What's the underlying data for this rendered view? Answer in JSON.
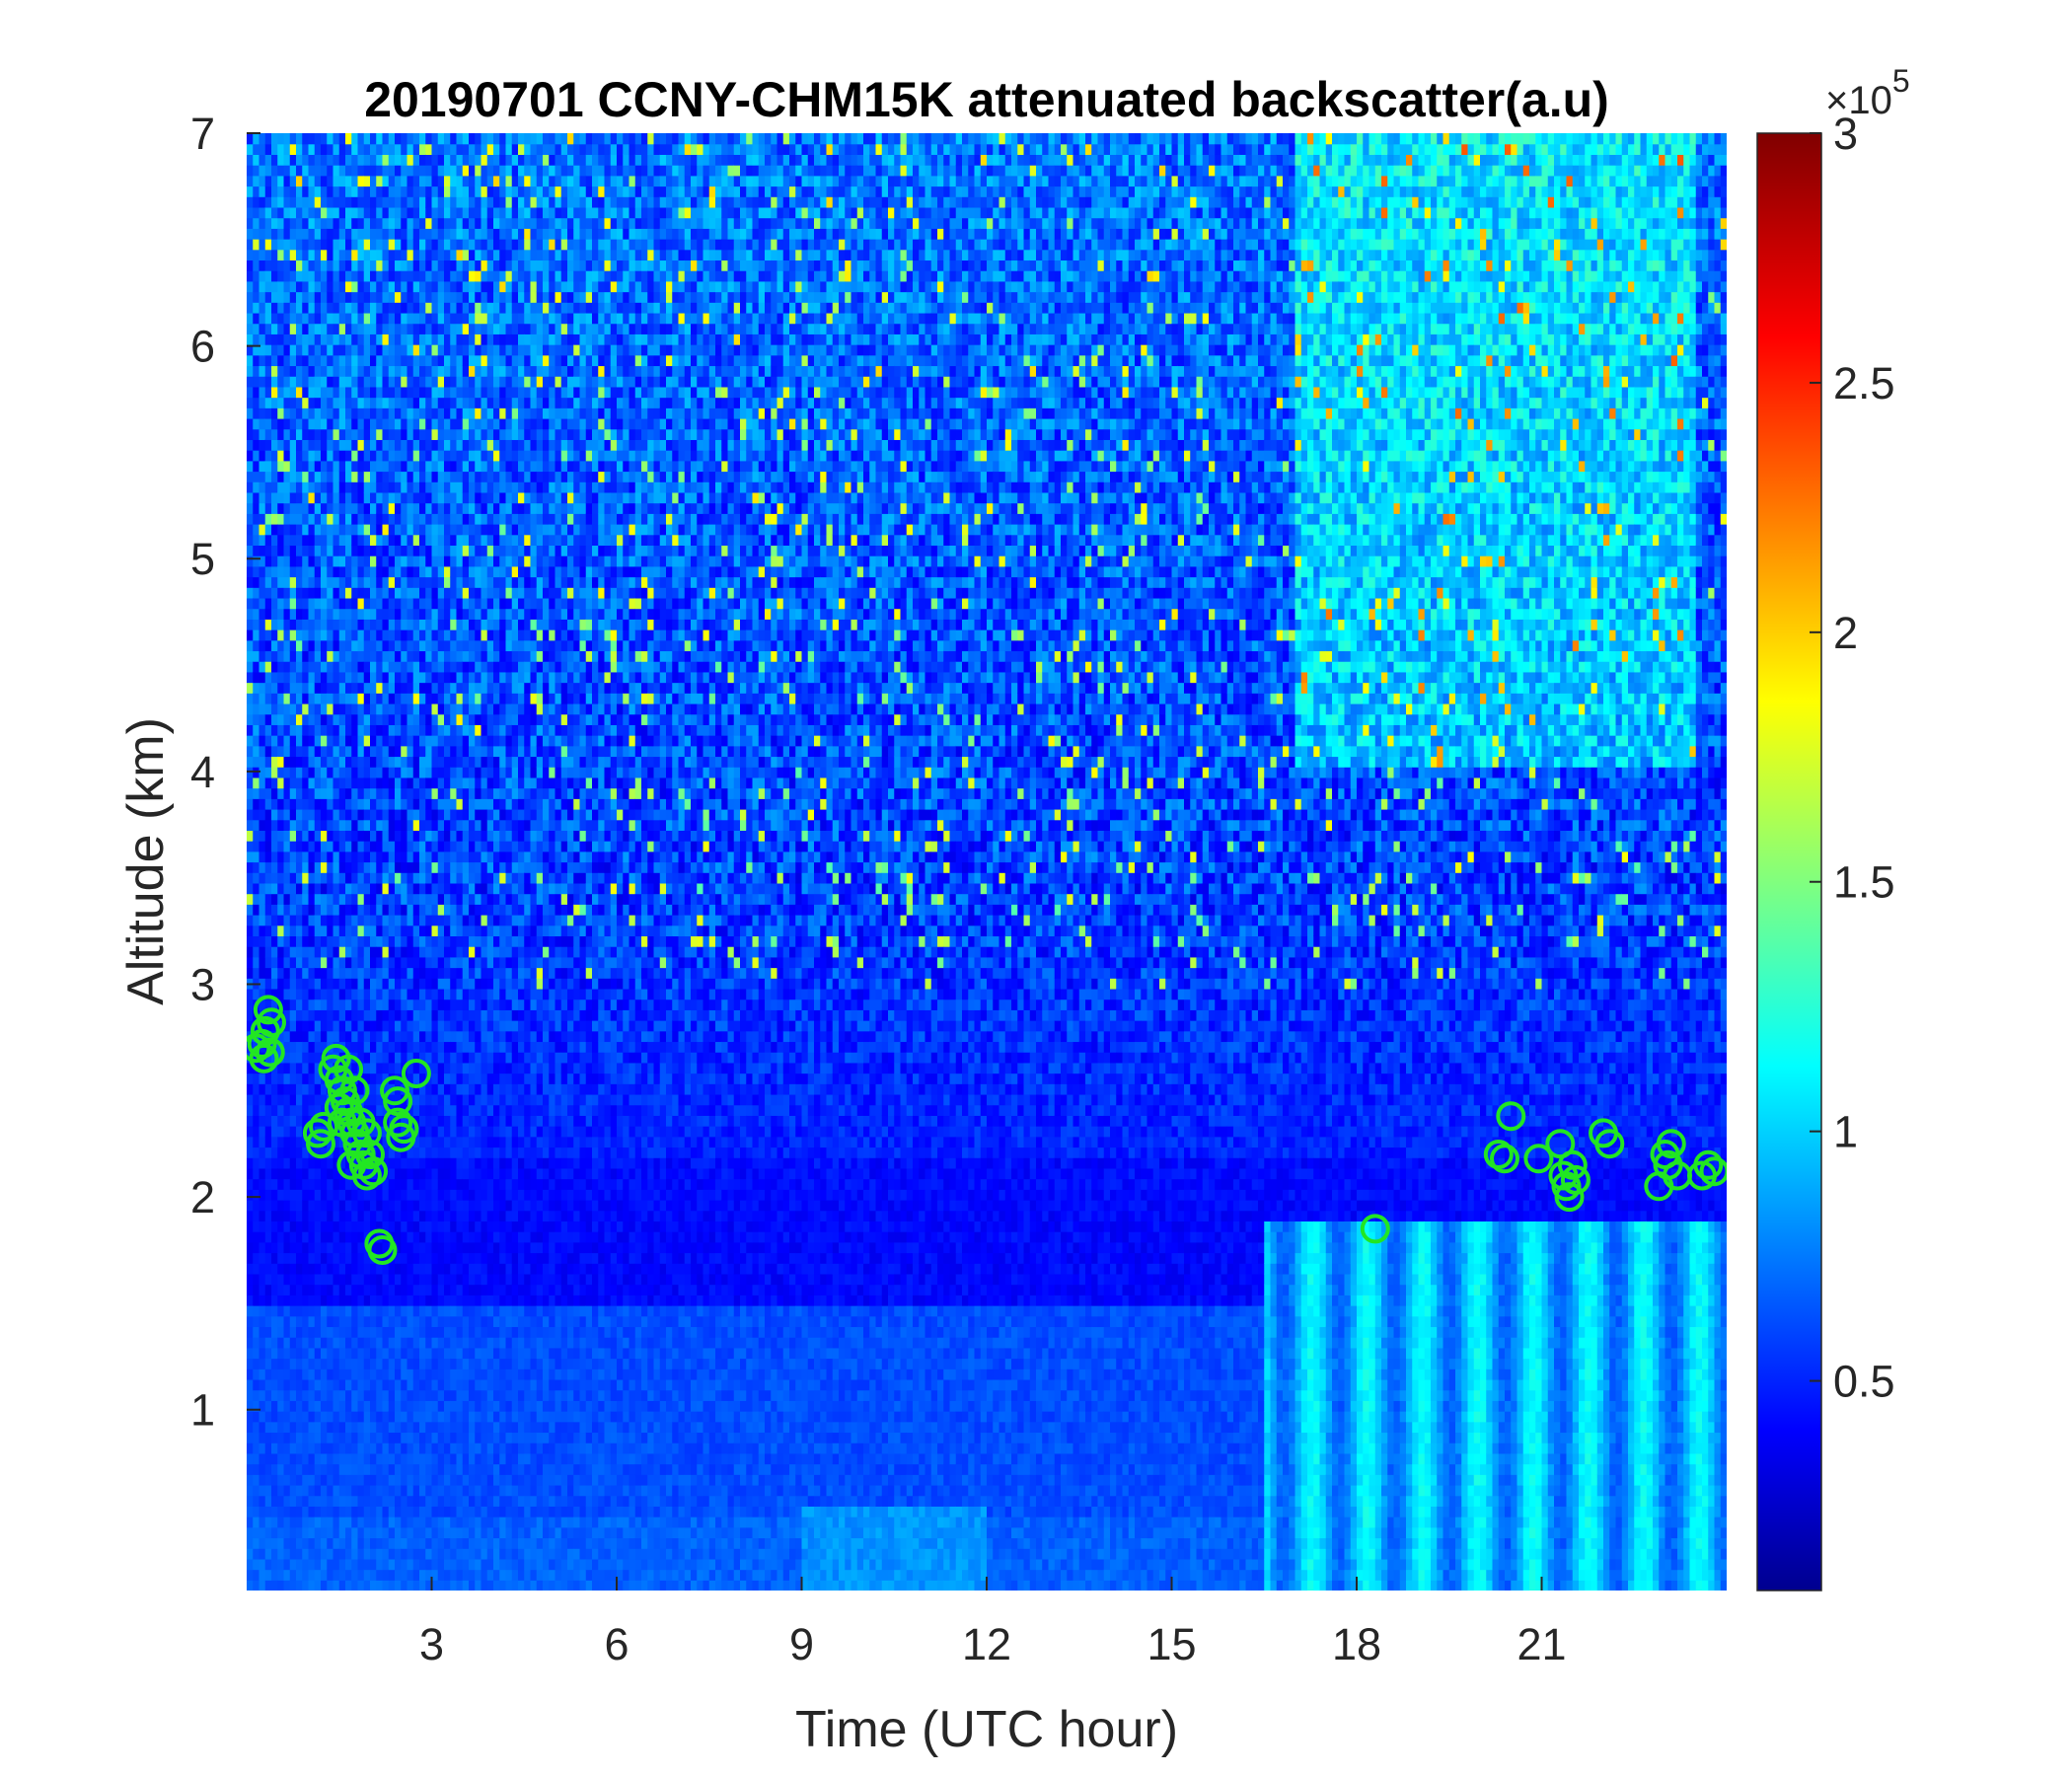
{
  "chart_data": {
    "type": "heatmap",
    "title": "20190701 CCNY-CHM15K attenuated backscatter(a.u)",
    "xlabel": "Time (UTC hour)",
    "ylabel": "Altitude (km)",
    "xlim": [
      0,
      24
    ],
    "ylim": [
      0.15,
      7
    ],
    "x_ticks": [
      3,
      6,
      9,
      12,
      15,
      18,
      21
    ],
    "x_tick_labels": [
      "3",
      "6",
      "9",
      "12",
      "15",
      "18",
      "21"
    ],
    "y_ticks": [
      1,
      2,
      3,
      4,
      5,
      6,
      7
    ],
    "y_tick_labels": [
      "1",
      "2",
      "3",
      "4",
      "5",
      "6",
      "7"
    ],
    "colorbar": {
      "colormap": "jet",
      "range": [
        0.08,
        3
      ],
      "ticks": [
        0.5,
        1,
        1.5,
        2,
        2.5,
        3
      ],
      "tick_labels": [
        "0.5",
        "1",
        "1.5",
        "2",
        "2.5",
        "3"
      ],
      "multiplier_base": "×10",
      "multiplier_exponent": "5"
    },
    "boundary_layer_height": {
      "marker": "circle",
      "color": "#22e622",
      "points": [
        [
          0.15,
          2.7
        ],
        [
          0.25,
          2.72
        ],
        [
          0.3,
          2.78
        ],
        [
          0.35,
          2.88
        ],
        [
          0.4,
          2.82
        ],
        [
          0.38,
          2.68
        ],
        [
          0.28,
          2.65
        ],
        [
          1.15,
          2.3
        ],
        [
          1.2,
          2.25
        ],
        [
          1.25,
          2.33
        ],
        [
          1.4,
          2.6
        ],
        [
          1.45,
          2.65
        ],
        [
          1.5,
          2.55
        ],
        [
          1.55,
          2.5
        ],
        [
          1.6,
          2.45
        ],
        [
          1.65,
          2.4
        ],
        [
          1.7,
          2.35
        ],
        [
          1.75,
          2.3
        ],
        [
          1.8,
          2.25
        ],
        [
          1.85,
          2.2
        ],
        [
          1.9,
          2.15
        ],
        [
          1.95,
          2.1
        ],
        [
          2.0,
          2.2
        ],
        [
          1.65,
          2.6
        ],
        [
          1.55,
          2.35
        ],
        [
          1.7,
          2.15
        ],
        [
          1.75,
          2.5
        ],
        [
          1.85,
          2.35
        ],
        [
          1.95,
          2.3
        ],
        [
          2.05,
          2.12
        ],
        [
          1.5,
          2.42
        ],
        [
          2.15,
          1.78
        ],
        [
          2.2,
          1.75
        ],
        [
          2.4,
          2.5
        ],
        [
          2.45,
          2.35
        ],
        [
          2.5,
          2.28
        ],
        [
          2.45,
          2.45
        ],
        [
          2.55,
          2.32
        ],
        [
          2.75,
          2.58
        ],
        [
          18.3,
          1.85
        ],
        [
          20.3,
          2.2
        ],
        [
          20.4,
          2.18
        ],
        [
          20.5,
          2.38
        ],
        [
          20.95,
          2.18
        ],
        [
          21.3,
          2.25
        ],
        [
          21.35,
          2.1
        ],
        [
          21.4,
          2.05
        ],
        [
          21.45,
          2.0
        ],
        [
          21.5,
          2.15
        ],
        [
          21.55,
          2.08
        ],
        [
          22.0,
          2.3
        ],
        [
          22.1,
          2.25
        ],
        [
          22.9,
          2.05
        ],
        [
          23.0,
          2.2
        ],
        [
          23.05,
          2.15
        ],
        [
          23.1,
          2.25
        ],
        [
          23.2,
          2.1
        ],
        [
          23.6,
          2.1
        ],
        [
          23.7,
          2.15
        ],
        [
          23.8,
          2.12
        ]
      ]
    }
  }
}
